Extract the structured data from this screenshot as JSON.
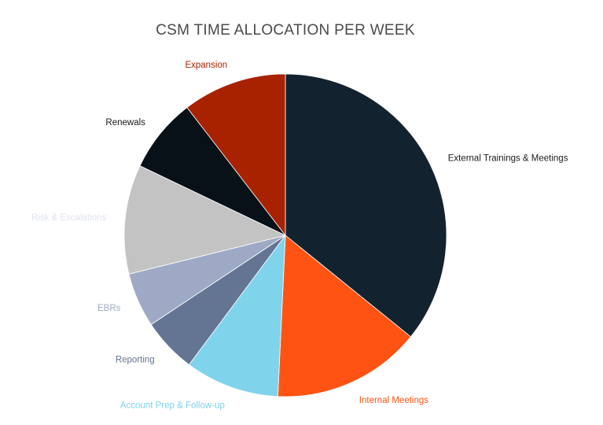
{
  "chart_data": {
    "type": "pie",
    "title": "CSM TIME ALLOCATION PER WEEK",
    "start_angle_deg": 0,
    "direction": "clockwise",
    "slices": [
      {
        "label": "External Trainings & Meetings",
        "value": 36,
        "color": "#13222f",
        "label_color": "#1a1a1a"
      },
      {
        "label": "Internal Meetings",
        "value": 15,
        "color": "#ff5314",
        "label_color": "#ff5314"
      },
      {
        "label": "Account Prep & Follow-up",
        "value": 9.5,
        "color": "#7fd3ea",
        "label_color": "#7fd3ea"
      },
      {
        "label": "Reporting",
        "value": 5.5,
        "color": "#637593",
        "label_color": "#637593"
      },
      {
        "label": "EBRs",
        "value": 5.5,
        "color": "#9eaac5",
        "label_color": "#9eaac5"
      },
      {
        "label": "Risk & Escalations",
        "value": 11,
        "color": "#c3c3c3",
        "label_color": "#dfe3ee"
      },
      {
        "label": "Renewals",
        "value": 7.5,
        "color": "#081018",
        "label_color": "#1a1a1a"
      },
      {
        "label": "Expansion",
        "value": 10.5,
        "color": "#a92200",
        "label_color": "#a92200"
      }
    ]
  }
}
